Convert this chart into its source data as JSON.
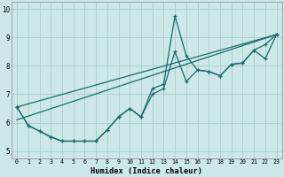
{
  "xlabel": "Humidex (Indice chaleur)",
  "bg_color": "#cce8e8",
  "grid_color": "#aacccc",
  "line_color": "#1a6b6b",
  "xlim": [
    -0.5,
    23.5
  ],
  "ylim": [
    4.75,
    10.25
  ],
  "xticks": [
    0,
    1,
    2,
    3,
    4,
    5,
    6,
    7,
    8,
    9,
    10,
    11,
    12,
    13,
    14,
    15,
    16,
    17,
    18,
    19,
    20,
    21,
    22,
    23
  ],
  "yticks": [
    5,
    6,
    7,
    8,
    9,
    10
  ],
  "trend1": {
    "x": [
      0,
      23
    ],
    "y": [
      6.55,
      9.1
    ]
  },
  "trend2": {
    "x": [
      0,
      23
    ],
    "y": [
      6.1,
      9.1
    ]
  },
  "line1_x": [
    0,
    1,
    2,
    3,
    4,
    5,
    6,
    7,
    8,
    9,
    10,
    11,
    12,
    13,
    14,
    15,
    16,
    17,
    18,
    19,
    20,
    21,
    22,
    23
  ],
  "line1_y": [
    6.55,
    5.9,
    5.7,
    5.5,
    5.35,
    5.35,
    5.35,
    5.35,
    5.75,
    6.2,
    6.5,
    6.2,
    7.2,
    7.35,
    9.75,
    8.35,
    7.85,
    7.8,
    7.65,
    8.05,
    8.1,
    8.55,
    8.75,
    9.1
  ],
  "line2_x": [
    0,
    1,
    2,
    3,
    4,
    5,
    6,
    7,
    8,
    9,
    10,
    11,
    12,
    13,
    14,
    15,
    16,
    17,
    18,
    19,
    20,
    21,
    22,
    23
  ],
  "line2_y": [
    6.55,
    5.9,
    5.7,
    5.5,
    5.35,
    5.35,
    5.35,
    5.35,
    5.75,
    6.2,
    6.5,
    6.2,
    7.0,
    7.2,
    8.5,
    7.45,
    7.85,
    7.8,
    7.65,
    8.05,
    8.1,
    8.55,
    8.25,
    9.1
  ]
}
